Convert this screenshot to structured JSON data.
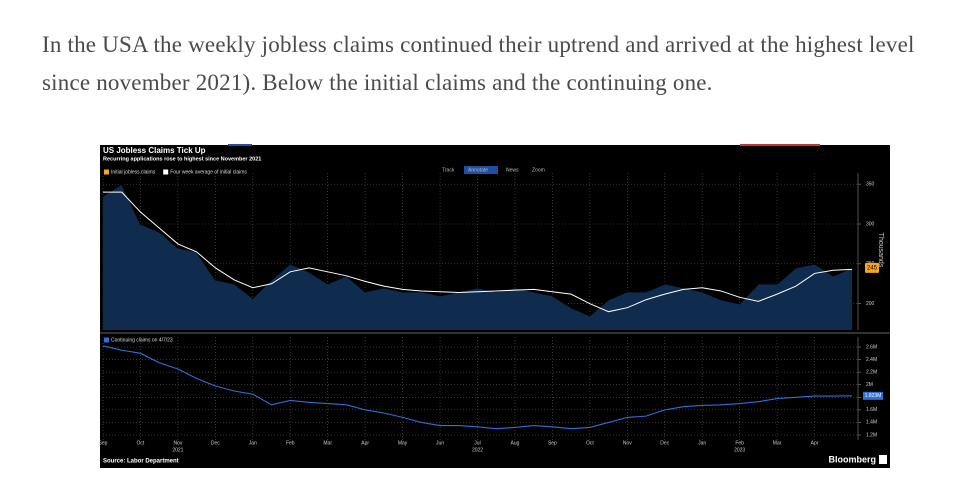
{
  "paragraph": "In the USA the weekly jobless claims continued their uptrend and arrived at the highest level since november 2021). Below the initial claims and the continuing one.",
  "toolbar": [
    "Track",
    "Annotate",
    "News",
    "Zoom"
  ],
  "source": "Source: Labor Department",
  "brand": "Bloomberg",
  "chart_data": [
    {
      "type": "area",
      "title": "US Jobless Claims Tick Up",
      "subtitle": "Recurring applications rose to highest since November 2021",
      "y_label": "Thousands",
      "ylim": [
        167,
        364
      ],
      "yticks": [
        200,
        250,
        300,
        350
      ],
      "grid": true,
      "series": [
        {
          "name": "Initial jobless claims",
          "color": "#f5a623",
          "fill": "#0f2b4d",
          "values": [
            335,
            350,
            300,
            290,
            270,
            265,
            230,
            225,
            207,
            230,
            250,
            240,
            225,
            235,
            215,
            220,
            215,
            215,
            210,
            215,
            220,
            215,
            220,
            215,
            210,
            195,
            185,
            205,
            215,
            215,
            225,
            220,
            215,
            205,
            200,
            225,
            225,
            245,
            250,
            235,
            245
          ]
        },
        {
          "name": "Four week average of initial claims",
          "color": "#ffffff",
          "values": [
            340,
            340,
            315,
            295,
            275,
            265,
            245,
            230,
            220,
            225,
            240,
            245,
            240,
            235,
            228,
            222,
            218,
            216,
            215,
            214,
            215,
            216,
            217,
            218,
            215,
            212,
            200,
            190,
            195,
            205,
            212,
            218,
            220,
            216,
            208,
            203,
            212,
            222,
            238,
            242,
            243
          ]
        }
      ]
    },
    {
      "type": "line",
      "ylim": [
        1.12,
        2.76
      ],
      "yticks": [
        {
          "value": 1.2,
          "label": "1.2M"
        },
        {
          "value": 1.4,
          "label": "1.4M"
        },
        {
          "value": 1.6,
          "label": "1.6M"
        },
        {
          "value": 1.8,
          "label": "1.8M"
        },
        {
          "value": 2,
          "label": "2M"
        },
        {
          "value": 2.2,
          "label": "2.2M"
        },
        {
          "value": 2.4,
          "label": "2.4M"
        },
        {
          "value": 2.6,
          "label": "2.6M"
        }
      ],
      "grid": true,
      "categories": [
        "Sep",
        null,
        "Oct",
        null,
        "Nov",
        null,
        "Dec",
        null,
        "Jan",
        null,
        "Feb",
        null,
        "Mar",
        null,
        "Apr",
        null,
        "May",
        null,
        "Jun",
        null,
        "Jul",
        null,
        "Aug",
        null,
        "Sep",
        null,
        "Oct",
        null,
        "Nov",
        null,
        "Dec",
        null,
        "Jan",
        null,
        "Feb",
        null,
        "Mar",
        null,
        "Apr",
        null,
        null
      ],
      "years": [
        null,
        null,
        null,
        null,
        "2021",
        null,
        null,
        null,
        null,
        null,
        null,
        null,
        null,
        null,
        null,
        null,
        null,
        null,
        null,
        null,
        "2022",
        null,
        null,
        null,
        null,
        null,
        null,
        null,
        null,
        null,
        null,
        null,
        null,
        null,
        "2023",
        null,
        null,
        null,
        null,
        null,
        null
      ],
      "series": [
        {
          "name": "Continuing claims on 4/7/23",
          "color": "#2f6fd6",
          "values": [
            2.62,
            2.55,
            2.5,
            2.35,
            2.25,
            2.1,
            1.98,
            1.9,
            1.85,
            1.68,
            1.75,
            1.72,
            1.7,
            1.68,
            1.6,
            1.55,
            1.48,
            1.4,
            1.35,
            1.35,
            1.33,
            1.3,
            1.32,
            1.35,
            1.33,
            1.3,
            1.32,
            1.4,
            1.48,
            1.5,
            1.6,
            1.65,
            1.67,
            1.68,
            1.7,
            1.73,
            1.78,
            1.8,
            1.82,
            1.82,
            1.823
          ],
          "value_labels": [
            null,
            null,
            null,
            null,
            null,
            null,
            null,
            null,
            null,
            null,
            null,
            null,
            null,
            null,
            null,
            null,
            null,
            null,
            null,
            null,
            null,
            null,
            null,
            null,
            null,
            null,
            null,
            null,
            null,
            null,
            null,
            null,
            null,
            null,
            null,
            null,
            null,
            null,
            null,
            null,
            "1.823M"
          ]
        }
      ]
    }
  ]
}
